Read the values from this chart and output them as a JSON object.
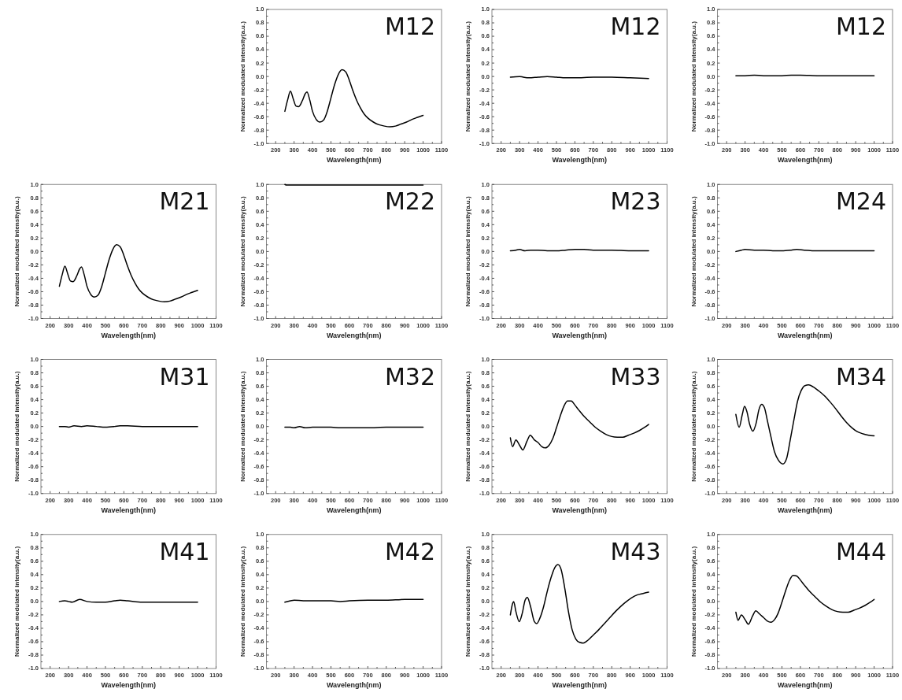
{
  "chart_data": [
    {
      "type": "line",
      "xlabel": "Wavelength(nm)",
      "ylabel": "Normalized modulated intensity(a.u.)",
      "annotations": [
        "M12"
      ],
      "xlim": [
        150,
        1100
      ],
      "xticks": [
        200,
        300,
        400,
        500,
        600,
        700,
        800,
        900,
        1000,
        1100
      ],
      "ylim": [
        -1,
        1
      ],
      "yticks": [
        {
          "value": 1,
          "label": "1.0"
        },
        {
          "value": 0.8,
          "label": "0.8"
        },
        {
          "value": 0.6,
          "label": "0.6"
        },
        {
          "value": 0.4,
          "label": "0.4"
        },
        {
          "value": 0.2,
          "label": "0.2"
        },
        {
          "value": 0,
          "label": "0.0"
        },
        {
          "value": -0.2,
          "label": "-0.2"
        },
        {
          "value": -0.4,
          "label": "-0.4"
        },
        {
          "value": -0.6,
          "label": "-0.6"
        },
        {
          "value": -0.8,
          "label": "-0.8"
        },
        {
          "value": -1,
          "label": "-1.0"
        }
      ],
      "series": [
        {
          "color": "#000000",
          "x": [
            250,
            265,
            280,
            295,
            310,
            325,
            345,
            360,
            370,
            385,
            400,
            420,
            440,
            460,
            480,
            500,
            520,
            540,
            560,
            580,
            600,
            620,
            640,
            660,
            680,
            700,
            730,
            760,
            790,
            820,
            850,
            880,
            910,
            940,
            970,
            1000
          ],
          "values": [
            -0.52,
            -0.35,
            -0.22,
            -0.33,
            -0.44,
            -0.45,
            -0.36,
            -0.26,
            -0.23,
            -0.35,
            -0.52,
            -0.64,
            -0.68,
            -0.65,
            -0.52,
            -0.32,
            -0.12,
            0.03,
            0.1,
            0.07,
            -0.06,
            -0.22,
            -0.36,
            -0.47,
            -0.56,
            -0.62,
            -0.68,
            -0.72,
            -0.74,
            -0.75,
            -0.74,
            -0.71,
            -0.68,
            -0.64,
            -0.61,
            -0.58
          ]
        }
      ]
    },
    {
      "type": "line",
      "xlabel": "Wavelength(nm)",
      "ylabel": "Normalized modulated intensity(a.u.)",
      "annotations": [
        "M12"
      ],
      "xlim": [
        150,
        1100
      ],
      "xticks": [
        200,
        300,
        400,
        500,
        600,
        700,
        800,
        900,
        1000,
        1100
      ],
      "ylim": [
        -1,
        1
      ],
      "yticks": [
        {
          "value": 1,
          "label": "1.0"
        },
        {
          "value": 0.8,
          "label": "0.8"
        },
        {
          "value": 0.6,
          "label": "0.6"
        },
        {
          "value": 0.4,
          "label": "0.4"
        },
        {
          "value": 0.2,
          "label": "0.2"
        },
        {
          "value": 0,
          "label": "0.0"
        },
        {
          "value": -0.2,
          "label": "-0.2"
        },
        {
          "value": -0.4,
          "label": "-0.4"
        },
        {
          "value": -0.6,
          "label": "-0.6"
        },
        {
          "value": -0.8,
          "label": "-0.8"
        },
        {
          "value": -1,
          "label": "-1.0"
        }
      ],
      "series": [
        {
          "color": "#000000",
          "x": [
            250,
            300,
            320,
            350,
            400,
            450,
            500,
            550,
            600,
            700,
            800,
            900,
            1000
          ],
          "values": [
            -0.01,
            0,
            -0.01,
            -0.02,
            -0.01,
            0,
            -0.01,
            -0.02,
            -0.02,
            -0.01,
            -0.01,
            -0.02,
            -0.03
          ]
        }
      ]
    },
    {
      "type": "line",
      "xlabel": "Wavelength(nm)",
      "ylabel": "Normalized modulated intensity(a.u.)",
      "annotations": [
        "M12"
      ],
      "xlim": [
        150,
        1100
      ],
      "xticks": [
        200,
        300,
        400,
        500,
        600,
        700,
        800,
        900,
        1000,
        1100
      ],
      "ylim": [
        -1,
        1
      ],
      "yticks": [
        {
          "value": 1,
          "label": "1.0"
        },
        {
          "value": 0.8,
          "label": "0.8"
        },
        {
          "value": 0.6,
          "label": "0.6"
        },
        {
          "value": 0.4,
          "label": "0.4"
        },
        {
          "value": 0.2,
          "label": "0.2"
        },
        {
          "value": 0,
          "label": "0.0"
        },
        {
          "value": -0.2,
          "label": "-0.2"
        },
        {
          "value": -0.4,
          "label": "-0.4"
        },
        {
          "value": -0.6,
          "label": "-0.6"
        },
        {
          "value": -0.8,
          "label": "-0.8"
        },
        {
          "value": -1,
          "label": "-1.0"
        }
      ],
      "series": [
        {
          "color": "#000000",
          "x": [
            250,
            300,
            350,
            400,
            450,
            500,
            550,
            600,
            700,
            800,
            900,
            1000
          ],
          "values": [
            0.01,
            0.01,
            0.02,
            0.01,
            0.01,
            0.01,
            0.02,
            0.02,
            0.01,
            0.01,
            0.01,
            0.01
          ]
        }
      ]
    },
    {
      "type": "line",
      "xlabel": "Wavelength(nm)",
      "ylabel": "Normalized modulated intensity(a.u.)",
      "annotations": [
        "M21"
      ],
      "xlim": [
        150,
        1100
      ],
      "xticks": [
        200,
        300,
        400,
        500,
        600,
        700,
        800,
        900,
        1000,
        1100
      ],
      "ylim": [
        -1,
        1
      ],
      "yticks": [
        {
          "value": 1,
          "label": "1.0"
        },
        {
          "value": 0.8,
          "label": "0.8"
        },
        {
          "value": 0.6,
          "label": "0.6"
        },
        {
          "value": 0.4,
          "label": "0.4"
        },
        {
          "value": 0.2,
          "label": "0.2"
        },
        {
          "value": 0,
          "label": "0.0"
        },
        {
          "value": -0.2,
          "label": "-0.2"
        },
        {
          "value": -0.4,
          "label": "-0.4"
        },
        {
          "value": -0.6,
          "label": "-0.6"
        },
        {
          "value": -0.8,
          "label": "-0.8"
        },
        {
          "value": -1,
          "label": "-1.0"
        }
      ],
      "series": [
        {
          "color": "#000000",
          "x": [
            250,
            265,
            280,
            295,
            310,
            325,
            345,
            360,
            370,
            385,
            400,
            420,
            440,
            460,
            480,
            500,
            520,
            540,
            560,
            580,
            600,
            620,
            640,
            660,
            680,
            700,
            730,
            760,
            790,
            820,
            850,
            880,
            910,
            940,
            970,
            1000
          ],
          "values": [
            -0.52,
            -0.35,
            -0.22,
            -0.33,
            -0.44,
            -0.45,
            -0.36,
            -0.26,
            -0.23,
            -0.35,
            -0.52,
            -0.64,
            -0.68,
            -0.65,
            -0.52,
            -0.32,
            -0.12,
            0.03,
            0.1,
            0.07,
            -0.06,
            -0.22,
            -0.36,
            -0.47,
            -0.56,
            -0.62,
            -0.68,
            -0.72,
            -0.74,
            -0.75,
            -0.74,
            -0.71,
            -0.68,
            -0.64,
            -0.61,
            -0.58
          ]
        }
      ]
    },
    {
      "type": "line",
      "xlabel": "Wavelength(nm)",
      "ylabel": "Normalized modulated intensity(a.u.)",
      "annotations": [
        "M22"
      ],
      "xlim": [
        150,
        1100
      ],
      "xticks": [
        200,
        300,
        400,
        500,
        600,
        700,
        800,
        900,
        1000,
        1100
      ],
      "ylim": [
        -1,
        1
      ],
      "yticks": [
        {
          "value": 1,
          "label": "1.0"
        },
        {
          "value": 0.8,
          "label": "0.8"
        },
        {
          "value": 0.6,
          "label": "0.6"
        },
        {
          "value": 0.4,
          "label": "0.4"
        },
        {
          "value": 0.2,
          "label": "0.2"
        },
        {
          "value": 0,
          "label": "0.0"
        },
        {
          "value": -0.2,
          "label": "-0.2"
        },
        {
          "value": -0.4,
          "label": "-0.4"
        },
        {
          "value": -0.6,
          "label": "-0.6"
        },
        {
          "value": -0.8,
          "label": "-0.8"
        },
        {
          "value": -1,
          "label": "-1.0"
        }
      ],
      "series": [
        {
          "color": "#000000",
          "x": [
            250,
            260,
            300,
            400,
            500,
            600,
            700,
            800,
            900,
            1000
          ],
          "values": [
            1,
            0.99,
            0.99,
            0.99,
            0.99,
            0.99,
            0.99,
            0.99,
            0.99,
            0.99
          ]
        }
      ]
    },
    {
      "type": "line",
      "xlabel": "Wavelength(nm)",
      "ylabel": "Normalized modulated intensity(a.u.)",
      "annotations": [
        "M23"
      ],
      "xlim": [
        150,
        1100
      ],
      "xticks": [
        200,
        300,
        400,
        500,
        600,
        700,
        800,
        900,
        1000,
        1100
      ],
      "ylim": [
        -1,
        1
      ],
      "yticks": [
        {
          "value": 1,
          "label": "1.0"
        },
        {
          "value": 0.8,
          "label": "0.8"
        },
        {
          "value": 0.6,
          "label": "0.6"
        },
        {
          "value": 0.4,
          "label": "0.4"
        },
        {
          "value": 0.2,
          "label": "0.2"
        },
        {
          "value": 0,
          "label": "0.0"
        },
        {
          "value": -0.2,
          "label": "-0.2"
        },
        {
          "value": -0.4,
          "label": "-0.4"
        },
        {
          "value": -0.6,
          "label": "-0.6"
        },
        {
          "value": -0.8,
          "label": "-0.8"
        },
        {
          "value": -1,
          "label": "-1.0"
        }
      ],
      "series": [
        {
          "color": "#000000",
          "x": [
            250,
            280,
            300,
            330,
            360,
            400,
            450,
            500,
            550,
            600,
            650,
            700,
            800,
            900,
            1000
          ],
          "values": [
            0.01,
            0.02,
            0.03,
            0.01,
            0.02,
            0.02,
            0.01,
            0.01,
            0.02,
            0.03,
            0.03,
            0.02,
            0.02,
            0.01,
            0.01
          ]
        }
      ]
    },
    {
      "type": "line",
      "xlabel": "Wavelength(nm)",
      "ylabel": "Normalized modulated intensity(a.u.)",
      "annotations": [
        "M24"
      ],
      "xlim": [
        150,
        1100
      ],
      "xticks": [
        200,
        300,
        400,
        500,
        600,
        700,
        800,
        900,
        1000,
        1100
      ],
      "ylim": [
        -1,
        1
      ],
      "yticks": [
        {
          "value": 1,
          "label": "1.0"
        },
        {
          "value": 0.8,
          "label": "0.8"
        },
        {
          "value": 0.6,
          "label": "0.6"
        },
        {
          "value": 0.4,
          "label": "0.4"
        },
        {
          "value": 0.2,
          "label": "0.2"
        },
        {
          "value": 0,
          "label": "0.0"
        },
        {
          "value": -0.2,
          "label": "-0.2"
        },
        {
          "value": -0.4,
          "label": "-0.4"
        },
        {
          "value": -0.6,
          "label": "-0.6"
        },
        {
          "value": -0.8,
          "label": "-0.8"
        },
        {
          "value": -1,
          "label": "-1.0"
        }
      ],
      "series": [
        {
          "color": "#000000",
          "x": [
            250,
            280,
            300,
            350,
            400,
            450,
            500,
            550,
            580,
            620,
            700,
            800,
            900,
            1000
          ],
          "values": [
            0,
            0.02,
            0.03,
            0.02,
            0.02,
            0.01,
            0.01,
            0.02,
            0.03,
            0.02,
            0.01,
            0.01,
            0.01,
            0.01
          ]
        }
      ]
    },
    {
      "type": "line",
      "xlabel": "Wavelength(nm)",
      "ylabel": "Normalized modulated intensity(a.u.)",
      "annotations": [
        "M31"
      ],
      "xlim": [
        150,
        1100
      ],
      "xticks": [
        200,
        300,
        400,
        500,
        600,
        700,
        800,
        900,
        1000,
        1100
      ],
      "ylim": [
        -1,
        1
      ],
      "yticks": [
        {
          "value": 1,
          "label": "1.0"
        },
        {
          "value": 0.8,
          "label": "0.8"
        },
        {
          "value": 0.6,
          "label": "0.6"
        },
        {
          "value": 0.4,
          "label": "0.4"
        },
        {
          "value": 0.2,
          "label": "0.2"
        },
        {
          "value": 0,
          "label": "0.0"
        },
        {
          "value": -0.2,
          "label": "-0.2"
        },
        {
          "value": -0.4,
          "label": "-0.4"
        },
        {
          "value": -0.6,
          "label": "-0.6"
        },
        {
          "value": -0.8,
          "label": "-0.8"
        },
        {
          "value": -1,
          "label": "-1.0"
        }
      ],
      "series": [
        {
          "color": "#000000",
          "x": [
            250,
            280,
            300,
            330,
            370,
            400,
            450,
            500,
            550,
            580,
            620,
            700,
            800,
            900,
            1000
          ],
          "values": [
            0,
            0,
            -0.01,
            0.01,
            0,
            0.01,
            0,
            -0.01,
            0,
            0.01,
            0.01,
            0,
            0,
            0,
            0
          ]
        }
      ]
    },
    {
      "type": "line",
      "xlabel": "Wavelength(nm)",
      "ylabel": "Normalized modulated intensity(a.u.)",
      "annotations": [
        "M32"
      ],
      "xlim": [
        150,
        1100
      ],
      "xticks": [
        200,
        300,
        400,
        500,
        600,
        700,
        800,
        900,
        1000,
        1100
      ],
      "ylim": [
        -1,
        1
      ],
      "yticks": [
        {
          "value": 1,
          "label": "1.0"
        },
        {
          "value": 0.8,
          "label": "0.8"
        },
        {
          "value": 0.6,
          "label": "0.6"
        },
        {
          "value": 0.4,
          "label": "0.4"
        },
        {
          "value": 0.2,
          "label": "0.2"
        },
        {
          "value": 0,
          "label": "0.0"
        },
        {
          "value": -0.2,
          "label": "-0.2"
        },
        {
          "value": -0.4,
          "label": "-0.4"
        },
        {
          "value": -0.6,
          "label": "-0.6"
        },
        {
          "value": -0.8,
          "label": "-0.8"
        },
        {
          "value": -1,
          "label": "-1.0"
        }
      ],
      "series": [
        {
          "color": "#000000",
          "x": [
            250,
            280,
            300,
            330,
            360,
            400,
            450,
            500,
            550,
            600,
            700,
            800,
            900,
            1000
          ],
          "values": [
            -0.01,
            -0.01,
            -0.02,
            0,
            -0.02,
            -0.01,
            -0.01,
            -0.01,
            -0.02,
            -0.02,
            -0.02,
            -0.01,
            -0.01,
            -0.01
          ]
        }
      ]
    },
    {
      "type": "line",
      "xlabel": "Wavelength(nm)",
      "ylabel": "Normalized modulated intensity(a.u.)",
      "annotations": [
        "M33"
      ],
      "xlim": [
        150,
        1100
      ],
      "xticks": [
        200,
        300,
        400,
        500,
        600,
        700,
        800,
        900,
        1000,
        1100
      ],
      "ylim": [
        -1,
        1
      ],
      "yticks": [
        {
          "value": 1,
          "label": "1.0"
        },
        {
          "value": 0.8,
          "label": "0.8"
        },
        {
          "value": 0.6,
          "label": "0.6"
        },
        {
          "value": 0.4,
          "label": "0.4"
        },
        {
          "value": 0.2,
          "label": "0.2"
        },
        {
          "value": 0,
          "label": "0.0"
        },
        {
          "value": -0.2,
          "label": "-0.2"
        },
        {
          "value": -0.4,
          "label": "-0.4"
        },
        {
          "value": -0.6,
          "label": "-0.6"
        },
        {
          "value": -0.8,
          "label": "-0.8"
        },
        {
          "value": -1,
          "label": "-1.0"
        }
      ],
      "series": [
        {
          "color": "#000000",
          "x": [
            250,
            262,
            280,
            300,
            318,
            340,
            358,
            380,
            400,
            420,
            440,
            460,
            480,
            500,
            520,
            540,
            560,
            580,
            600,
            620,
            650,
            680,
            710,
            740,
            770,
            800,
            830,
            860,
            890,
            920,
            950,
            980,
            1000
          ],
          "values": [
            -0.17,
            -0.3,
            -0.2,
            -0.28,
            -0.35,
            -0.22,
            -0.13,
            -0.2,
            -0.24,
            -0.3,
            -0.32,
            -0.28,
            -0.18,
            -0.02,
            0.15,
            0.3,
            0.38,
            0.38,
            0.32,
            0.25,
            0.15,
            0.07,
            -0.01,
            -0.07,
            -0.12,
            -0.15,
            -0.16,
            -0.16,
            -0.13,
            -0.1,
            -0.06,
            -0.01,
            0.03
          ]
        }
      ]
    },
    {
      "type": "line",
      "xlabel": "Wavelength(nm)",
      "ylabel": "Normalized modulated intensity(a.u.)",
      "annotations": [
        "M34"
      ],
      "xlim": [
        150,
        1100
      ],
      "xticks": [
        200,
        300,
        400,
        500,
        600,
        700,
        800,
        900,
        1000,
        1100
      ],
      "ylim": [
        -1,
        1
      ],
      "yticks": [
        {
          "value": 1,
          "label": "1.0"
        },
        {
          "value": 0.8,
          "label": "0.8"
        },
        {
          "value": 0.6,
          "label": "0.6"
        },
        {
          "value": 0.4,
          "label": "0.4"
        },
        {
          "value": 0.2,
          "label": "0.2"
        },
        {
          "value": 0,
          "label": "0.0"
        },
        {
          "value": -0.2,
          "label": "-0.2"
        },
        {
          "value": -0.4,
          "label": "-0.4"
        },
        {
          "value": -0.6,
          "label": "-0.6"
        },
        {
          "value": -0.8,
          "label": "-0.8"
        },
        {
          "value": -1,
          "label": "-1.0"
        }
      ],
      "series": [
        {
          "color": "#000000",
          "x": [
            250,
            268,
            285,
            297,
            310,
            325,
            342,
            360,
            375,
            390,
            405,
            420,
            440,
            460,
            480,
            505,
            525,
            545,
            565,
            585,
            605,
            625,
            645,
            670,
            700,
            730,
            760,
            790,
            820,
            850,
            880,
            910,
            940,
            970,
            1000
          ],
          "values": [
            0.18,
            -0.01,
            0.18,
            0.3,
            0.22,
            0.03,
            -0.07,
            0.05,
            0.25,
            0.33,
            0.28,
            0.1,
            -0.15,
            -0.38,
            -0.5,
            -0.56,
            -0.48,
            -0.2,
            0.1,
            0.38,
            0.54,
            0.61,
            0.62,
            0.59,
            0.53,
            0.46,
            0.37,
            0.27,
            0.16,
            0.06,
            -0.02,
            -0.08,
            -0.11,
            -0.13,
            -0.14
          ]
        }
      ]
    },
    {
      "type": "line",
      "xlabel": "Wavelength(nm)",
      "ylabel": "Normalized modulated intensity(a.u.)",
      "annotations": [
        "M41"
      ],
      "xlim": [
        150,
        1100
      ],
      "xticks": [
        200,
        300,
        400,
        500,
        600,
        700,
        800,
        900,
        1000,
        1100
      ],
      "ylim": [
        -1,
        1
      ],
      "yticks": [
        {
          "value": 1,
          "label": "1.0"
        },
        {
          "value": 0.8,
          "label": "0.8"
        },
        {
          "value": 0.6,
          "label": "0.6"
        },
        {
          "value": 0.4,
          "label": "0.4"
        },
        {
          "value": 0.2,
          "label": "0.2"
        },
        {
          "value": 0,
          "label": "0.0"
        },
        {
          "value": -0.2,
          "label": "-0.2"
        },
        {
          "value": -0.4,
          "label": "-0.4"
        },
        {
          "value": -0.6,
          "label": "-0.6"
        },
        {
          "value": -0.8,
          "label": "-0.8"
        },
        {
          "value": -1,
          "label": "-1.0"
        }
      ],
      "series": [
        {
          "color": "#000000",
          "x": [
            250,
            280,
            300,
            320,
            360,
            400,
            450,
            500,
            550,
            580,
            620,
            700,
            800,
            900,
            1000
          ],
          "values": [
            0,
            0.01,
            0,
            -0.01,
            0.03,
            0,
            -0.01,
            -0.01,
            0.01,
            0.02,
            0.01,
            -0.01,
            -0.01,
            -0.01,
            -0.01
          ]
        }
      ]
    },
    {
      "type": "line",
      "xlabel": "Wavelength(nm)",
      "ylabel": "Normalized modulated intensity(a.u.)",
      "annotations": [
        "M42"
      ],
      "xlim": [
        150,
        1100
      ],
      "xticks": [
        200,
        300,
        400,
        500,
        600,
        700,
        800,
        900,
        1000,
        1100
      ],
      "ylim": [
        -1,
        1
      ],
      "yticks": [
        {
          "value": 1,
          "label": "1.0"
        },
        {
          "value": 0.8,
          "label": "0.8"
        },
        {
          "value": 0.6,
          "label": "0.6"
        },
        {
          "value": 0.4,
          "label": "0.4"
        },
        {
          "value": 0.2,
          "label": "0.2"
        },
        {
          "value": 0,
          "label": "0.0"
        },
        {
          "value": -0.2,
          "label": "-0.2"
        },
        {
          "value": -0.4,
          "label": "-0.4"
        },
        {
          "value": -0.6,
          "label": "-0.6"
        },
        {
          "value": -0.8,
          "label": "-0.8"
        },
        {
          "value": -1,
          "label": "-1.0"
        }
      ],
      "series": [
        {
          "color": "#000000",
          "x": [
            250,
            280,
            300,
            350,
            400,
            450,
            500,
            550,
            600,
            700,
            800,
            900,
            1000
          ],
          "values": [
            -0.01,
            0.01,
            0.02,
            0.01,
            0.01,
            0.01,
            0.01,
            0,
            0.01,
            0.02,
            0.02,
            0.03,
            0.03
          ]
        }
      ]
    },
    {
      "type": "line",
      "xlabel": "Wavelength(nm)",
      "ylabel": "Normalized modulated intensity(a.u.)",
      "annotations": [
        "M43"
      ],
      "xlim": [
        150,
        1100
      ],
      "xticks": [
        200,
        300,
        400,
        500,
        600,
        700,
        800,
        900,
        1000,
        1100
      ],
      "ylim": [
        -1,
        1
      ],
      "yticks": [
        {
          "value": 1,
          "label": "1.0"
        },
        {
          "value": 0.8,
          "label": "0.8"
        },
        {
          "value": 0.6,
          "label": "0.6"
        },
        {
          "value": 0.4,
          "label": "0.4"
        },
        {
          "value": 0.2,
          "label": "0.2"
        },
        {
          "value": 0,
          "label": "0.0"
        },
        {
          "value": -0.2,
          "label": "-0.2"
        },
        {
          "value": -0.4,
          "label": "-0.4"
        },
        {
          "value": -0.6,
          "label": "-0.6"
        },
        {
          "value": -0.8,
          "label": "-0.8"
        },
        {
          "value": -1,
          "label": "-1.0"
        }
      ],
      "series": [
        {
          "color": "#000000",
          "x": [
            250,
            262,
            268,
            280,
            298,
            315,
            330,
            342,
            360,
            380,
            393,
            410,
            430,
            450,
            470,
            490,
            508,
            525,
            545,
            565,
            585,
            605,
            625,
            645,
            670,
            700,
            730,
            760,
            790,
            820,
            850,
            880,
            910,
            940,
            970,
            1000
          ],
          "values": [
            -0.2,
            -0.03,
            0,
            -0.15,
            -0.3,
            -0.17,
            0.02,
            0.06,
            -0.08,
            -0.3,
            -0.33,
            -0.25,
            -0.08,
            0.15,
            0.35,
            0.5,
            0.55,
            0.48,
            0.2,
            -0.15,
            -0.42,
            -0.56,
            -0.61,
            -0.62,
            -0.58,
            -0.5,
            -0.42,
            -0.33,
            -0.24,
            -0.15,
            -0.07,
            0,
            0.06,
            0.1,
            0.12,
            0.14
          ]
        }
      ]
    },
    {
      "type": "line",
      "xlabel": "Wavelength(nm)",
      "ylabel": "Normalized modulated intensity(a.u.)",
      "annotations": [
        "M44"
      ],
      "xlim": [
        150,
        1100
      ],
      "xticks": [
        200,
        300,
        400,
        500,
        600,
        700,
        800,
        900,
        1000,
        1100
      ],
      "ylim": [
        -1,
        1
      ],
      "yticks": [
        {
          "value": 1,
          "label": "1.0"
        },
        {
          "value": 0.8,
          "label": "0.8"
        },
        {
          "value": 0.6,
          "label": "0.6"
        },
        {
          "value": 0.4,
          "label": "0.4"
        },
        {
          "value": 0.2,
          "label": "0.2"
        },
        {
          "value": 0,
          "label": "0.0"
        },
        {
          "value": -0.2,
          "label": "-0.2"
        },
        {
          "value": -0.4,
          "label": "-0.4"
        },
        {
          "value": -0.6,
          "label": "-0.6"
        },
        {
          "value": -0.8,
          "label": "-0.8"
        },
        {
          "value": -1,
          "label": "-1.0"
        }
      ],
      "series": [
        {
          "color": "#000000",
          "x": [
            250,
            262,
            280,
            300,
            318,
            340,
            358,
            380,
            400,
            420,
            440,
            460,
            480,
            500,
            520,
            540,
            560,
            580,
            600,
            620,
            650,
            680,
            710,
            740,
            770,
            800,
            830,
            860,
            890,
            920,
            950,
            980,
            1000
          ],
          "values": [
            -0.16,
            -0.28,
            -0.2,
            -0.27,
            -0.34,
            -0.22,
            -0.14,
            -0.19,
            -0.24,
            -0.29,
            -0.31,
            -0.27,
            -0.17,
            -0.01,
            0.16,
            0.31,
            0.39,
            0.38,
            0.32,
            0.25,
            0.15,
            0.07,
            -0.01,
            -0.07,
            -0.12,
            -0.15,
            -0.16,
            -0.16,
            -0.13,
            -0.1,
            -0.06,
            -0.01,
            0.03
          ]
        }
      ]
    }
  ]
}
